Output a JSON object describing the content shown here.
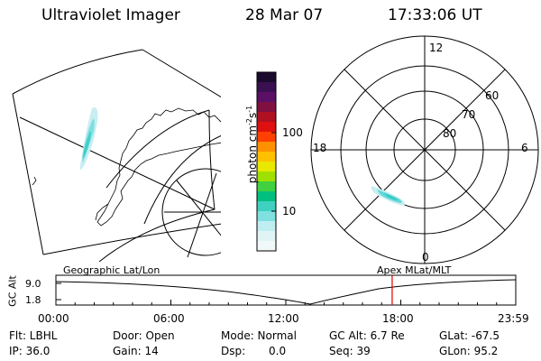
{
  "header": {
    "instrument": "Ultraviolet Imager",
    "date": "28 Mar 07",
    "time": "17:33:06 UT"
  },
  "colorbar": {
    "label": "photon cm",
    "label_sup1": "-2",
    "label_mid": "s",
    "label_sup2": "-1",
    "ticks": [
      {
        "value": 100,
        "label": "100"
      },
      {
        "value": 10,
        "label": "10"
      }
    ],
    "colors": [
      "#1a0a2e",
      "#3a1050",
      "#5a1065",
      "#801040",
      "#b01020",
      "#e01010",
      "#ff4000",
      "#ff9000",
      "#ffc000",
      "#e8e800",
      "#a0e000",
      "#40d040",
      "#00c080",
      "#40d0c0",
      "#80e0e0",
      "#c0eef0",
      "#e0f4f6",
      "#f0f8f8"
    ]
  },
  "polar_plot": {
    "mlt_labels": [
      "12",
      "18",
      "6",
      "0"
    ],
    "lat_labels": [
      "60",
      "70",
      "80"
    ]
  },
  "timeline": {
    "left_title": "Geographic Lat/Lon",
    "right_title": "Apex  MLat/MLT",
    "ylabel": "GC Alt",
    "y_ticks": [
      "9.0",
      "1.8"
    ],
    "x_ticks": [
      "00:00",
      "06:00",
      "12:00",
      "18:00",
      "23:59"
    ],
    "current_time_hours": 17.55
  },
  "status": {
    "flt": "Flt: LBHL",
    "ip": "IP: 36.0",
    "door": "Door: Open",
    "gain": "Gain: 14",
    "mode": "Mode: Normal",
    "dsp_label": "Dsp:",
    "dsp_value": "0.0",
    "gc_alt": "GC Alt: 6.7 Re",
    "seq": "Seq: 39",
    "glat": "GLat: -67.5",
    "glon": "GLon:  95.2"
  }
}
